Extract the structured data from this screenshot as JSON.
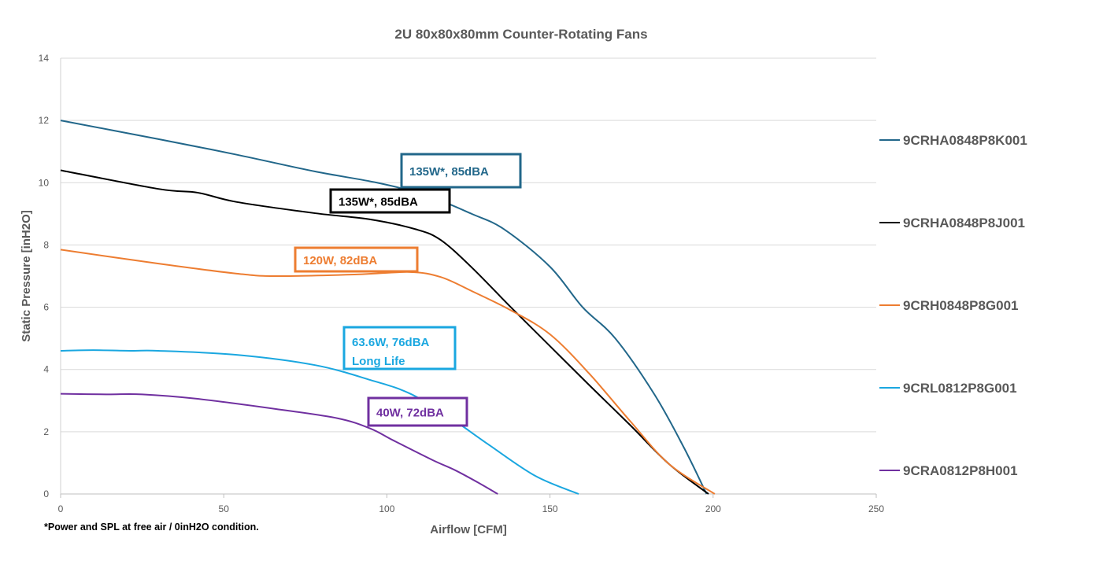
{
  "chart_data": {
    "type": "line",
    "title": "2U 80x80x80mm Counter-Rotating Fans",
    "xlabel": "Airflow [CFM]",
    "ylabel": "Static Pressure [inH2O]",
    "xlim": [
      0,
      250
    ],
    "ylim": [
      0,
      14
    ],
    "xticks": [
      0,
      50,
      100,
      150,
      200,
      250
    ],
    "yticks": [
      0,
      2,
      4,
      6,
      8,
      10,
      12,
      14
    ],
    "grid": "horizontal",
    "legend_placement": "right",
    "footnote": "*Power and SPL at free air / 0inH2O condition.",
    "series": [
      {
        "name": "9CRHA0848P8K001",
        "color": "#22678a",
        "annotation": [
          "135W*, 85dBA"
        ],
        "points": [
          [
            0,
            12
          ],
          [
            30,
            11.4
          ],
          [
            54,
            10.9
          ],
          [
            78,
            10.36
          ],
          [
            97,
            10.0
          ],
          [
            112,
            9.6
          ],
          [
            126,
            9.0
          ],
          [
            136,
            8.5
          ],
          [
            150,
            7.3
          ],
          [
            160,
            6.0
          ],
          [
            170,
            5.0
          ],
          [
            182,
            3.2
          ],
          [
            191,
            1.5
          ],
          [
            198,
            0
          ]
        ]
      },
      {
        "name": "9CRHA0848P8J001",
        "color": "#000000",
        "annotation": [
          "135W*, 85dBA"
        ],
        "points": [
          [
            0,
            10.4
          ],
          [
            30,
            9.8
          ],
          [
            42,
            9.68
          ],
          [
            54,
            9.38
          ],
          [
            78,
            9.02
          ],
          [
            95,
            8.82
          ],
          [
            109,
            8.5
          ],
          [
            116.5,
            8.16
          ],
          [
            126,
            7.28
          ],
          [
            138,
            6.0
          ],
          [
            150,
            4.75
          ],
          [
            162,
            3.5
          ],
          [
            174.5,
            2.22
          ],
          [
            186.5,
            0.96
          ],
          [
            198.6,
            0
          ]
        ]
      },
      {
        "name": "9CRH0848P8G001",
        "color": "#ed7d31",
        "annotation": [
          "120W, 82dBA"
        ],
        "points": [
          [
            0,
            7.85
          ],
          [
            30,
            7.4
          ],
          [
            54,
            7.08
          ],
          [
            66,
            7.0
          ],
          [
            90,
            7.05
          ],
          [
            107,
            7.13
          ],
          [
            116.5,
            6.97
          ],
          [
            126,
            6.52
          ],
          [
            138,
            5.9
          ],
          [
            150,
            5.13
          ],
          [
            162,
            3.87
          ],
          [
            174.5,
            2.35
          ],
          [
            186.5,
            0.96
          ],
          [
            200.5,
            0
          ]
        ]
      },
      {
        "name": "9CRL0812P8G001",
        "color": "#1aa7e0",
        "annotation": [
          "63.6W, 76dBA",
          "Long Life"
        ],
        "points": [
          [
            0,
            4.6
          ],
          [
            10,
            4.62
          ],
          [
            22,
            4.6
          ],
          [
            30,
            4.6
          ],
          [
            54,
            4.47
          ],
          [
            78,
            4.14
          ],
          [
            95,
            3.66
          ],
          [
            107,
            3.23
          ],
          [
            119,
            2.48
          ],
          [
            131,
            1.6
          ],
          [
            145.5,
            0.58
          ],
          [
            158.8,
            0
          ]
        ]
      },
      {
        "name": "9CRA0812P8H001",
        "color": "#7030a0",
        "annotation": [
          "40W, 72dBA"
        ],
        "points": [
          [
            0,
            3.22
          ],
          [
            14,
            3.2
          ],
          [
            25,
            3.2
          ],
          [
            41.7,
            3.06
          ],
          [
            66,
            2.73
          ],
          [
            85,
            2.43
          ],
          [
            95,
            2.1
          ],
          [
            102,
            1.72
          ],
          [
            114,
            1.09
          ],
          [
            121,
            0.76
          ],
          [
            128.6,
            0.33
          ],
          [
            134,
            0
          ]
        ]
      }
    ]
  }
}
